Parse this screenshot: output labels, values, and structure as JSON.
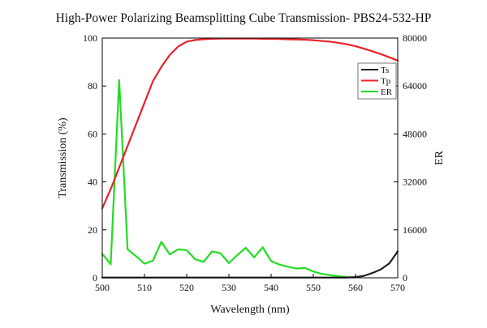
{
  "chart_data": {
    "type": "line",
    "title": "High-Power Polarizing Beamsplitting Cube Transmission- PBS24-532-HP",
    "xlabel": "Wavelength (nm)",
    "ylabel": "Transmission (%)",
    "y2label": "ER",
    "xlim": [
      500,
      570
    ],
    "ylim": [
      0,
      100
    ],
    "y2lim": [
      0,
      80000
    ],
    "x_ticks": [
      "500",
      "510",
      "520",
      "530",
      "540",
      "550",
      "560",
      "570"
    ],
    "y_ticks": [
      "0",
      "20",
      "40",
      "60",
      "80",
      "100"
    ],
    "y2_ticks": [
      "0",
      "16000",
      "32000",
      "48000",
      "64000",
      "80000"
    ],
    "grid": false,
    "legend_position": "top-right",
    "series": [
      {
        "name": "Ts",
        "axis": "left",
        "color": "#222222",
        "x": [
          500,
          502,
          504,
          506,
          508,
          510,
          512,
          514,
          516,
          518,
          520,
          522,
          524,
          526,
          528,
          530,
          532,
          534,
          536,
          538,
          540,
          542,
          544,
          546,
          548,
          550,
          552,
          554,
          556,
          558,
          560,
          562,
          564,
          566,
          568,
          570
        ],
        "y": [
          0.1,
          0.1,
          0.1,
          0.1,
          0.1,
          0.1,
          0.1,
          0.1,
          0.1,
          0.1,
          0.1,
          0.1,
          0.1,
          0.1,
          0.1,
          0.1,
          0.1,
          0.1,
          0.1,
          0.1,
          0.1,
          0.1,
          0.1,
          0.1,
          0.1,
          0.1,
          0.1,
          0.1,
          0.1,
          0.1,
          0.3,
          0.8,
          2.0,
          3.5,
          6.0,
          11.0
        ]
      },
      {
        "name": "Tp",
        "axis": "left",
        "color": "#e8232a",
        "x": [
          500,
          502,
          504,
          506,
          508,
          510,
          512,
          514,
          516,
          518,
          520,
          522,
          524,
          526,
          528,
          530,
          532,
          534,
          536,
          538,
          540,
          542,
          544,
          546,
          548,
          550,
          552,
          554,
          556,
          558,
          560,
          562,
          564,
          566,
          568,
          570
        ],
        "y": [
          29,
          37,
          46,
          55,
          64,
          73,
          82,
          88,
          93,
          96.5,
          98.5,
          99.2,
          99.5,
          99.7,
          99.8,
          99.8,
          99.8,
          99.8,
          99.8,
          99.7,
          99.7,
          99.6,
          99.5,
          99.4,
          99.3,
          99.1,
          98.8,
          98.5,
          98.0,
          97.4,
          96.6,
          95.6,
          94.5,
          93.3,
          92.0,
          90.6
        ]
      },
      {
        "name": "ER",
        "axis": "right",
        "color": "#22dd22",
        "x": [
          500,
          502,
          504,
          506,
          508,
          510,
          512,
          514,
          516,
          518,
          520,
          522,
          524,
          526,
          528,
          530,
          532,
          534,
          536,
          538,
          540,
          542,
          544,
          546,
          548,
          550,
          552,
          554,
          556,
          558,
          560
        ],
        "y": [
          8000,
          4500,
          66000,
          9500,
          7200,
          4700,
          5700,
          12000,
          7800,
          9500,
          9200,
          6200,
          5300,
          8800,
          8200,
          4900,
          7600,
          10000,
          6800,
          10200,
          5600,
          4400,
          3700,
          3100,
          3300,
          2100,
          1300,
          900,
          500,
          200,
          100
        ]
      }
    ]
  }
}
